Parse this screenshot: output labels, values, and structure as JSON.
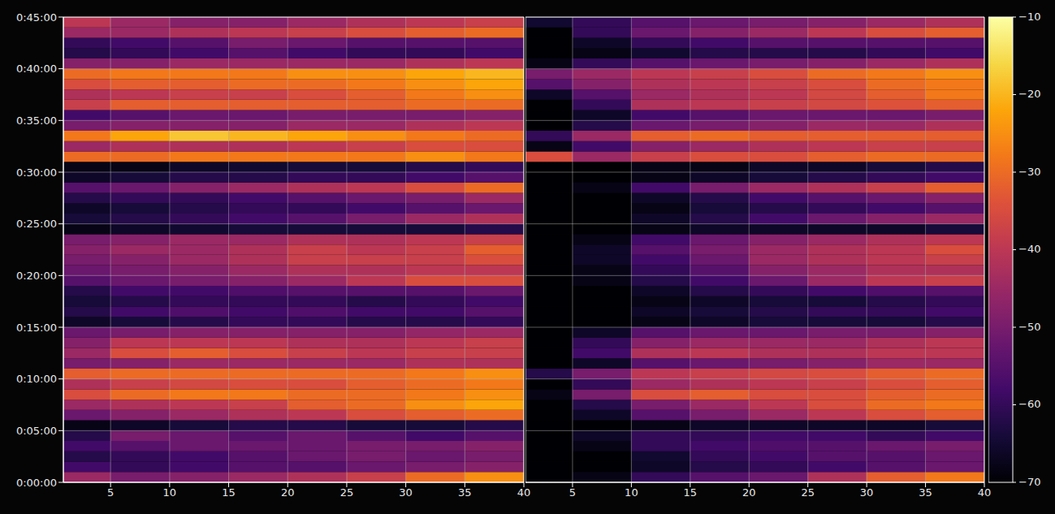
{
  "chart_data": {
    "type": "heatmap",
    "grid": true,
    "colorbar": {
      "range": [
        -70,
        -10
      ],
      "ticks": [
        {
          "value": -70,
          "label": "−70"
        },
        {
          "value": -60,
          "label": "−60"
        },
        {
          "value": -50,
          "label": "−50"
        },
        {
          "value": -40,
          "label": "−40"
        },
        {
          "value": -30,
          "label": "−30"
        },
        {
          "value": -20,
          "label": "−20"
        },
        {
          "value": -10,
          "label": "−10"
        }
      ]
    },
    "panels": [
      {
        "tick_labels": true,
        "xlim": [
          1,
          40
        ],
        "xticks": [
          5,
          10,
          15,
          20,
          25,
          30,
          35,
          40
        ],
        "ylim": [
          0,
          2700
        ],
        "yticks": [
          {
            "value": 0,
            "label": "0:00:00"
          },
          {
            "value": 300,
            "label": "0:05:00"
          },
          {
            "value": 600,
            "label": "0:10:00"
          },
          {
            "value": 900,
            "label": "0:15:00"
          },
          {
            "value": 1200,
            "label": "0:20:00"
          },
          {
            "value": 1500,
            "label": "0:25:00"
          },
          {
            "value": 1800,
            "label": "0:30:00"
          },
          {
            "value": 2100,
            "label": "0:35:00"
          },
          {
            "value": 2400,
            "label": "0:40:00"
          },
          {
            "value": 2700,
            "label": "0:45:00"
          }
        ],
        "x_edges": [
          1,
          5,
          10,
          15,
          20,
          25,
          30,
          35,
          40
        ],
        "y_edges": [
          0,
          60,
          120,
          180,
          240,
          300,
          360,
          420,
          480,
          540,
          600,
          660,
          720,
          780,
          840,
          900,
          960,
          1020,
          1080,
          1140,
          1200,
          1260,
          1320,
          1380,
          1440,
          1500,
          1560,
          1620,
          1680,
          1740,
          1800,
          1860,
          1920,
          1980,
          2040,
          2100,
          2160,
          2220,
          2280,
          2340,
          2400,
          2460,
          2520,
          2580,
          2640,
          2700
        ],
        "values": [
          [
            -45,
            -50,
            -48,
            -45,
            -42,
            -38,
            -30,
            -25
          ],
          [
            -58,
            -60,
            -58,
            -55,
            -55,
            -52,
            -50,
            -48
          ],
          [
            -62,
            -60,
            -58,
            -55,
            -52,
            -50,
            -52,
            -50
          ],
          [
            -58,
            -55,
            -52,
            -52,
            -52,
            -50,
            -50,
            -48
          ],
          [
            -62,
            -50,
            -52,
            -55,
            -52,
            -55,
            -58,
            -55
          ],
          [
            -68,
            -66,
            -64,
            -62,
            -62,
            -64,
            -64,
            -62
          ],
          [
            -52,
            -48,
            -45,
            -42,
            -40,
            -35,
            -32,
            -30
          ],
          [
            -45,
            -42,
            -40,
            -38,
            -32,
            -30,
            -25,
            -22
          ],
          [
            -35,
            -30,
            -28,
            -28,
            -30,
            -30,
            -28,
            -25
          ],
          [
            -42,
            -38,
            -36,
            -35,
            -35,
            -32,
            -30,
            -28
          ],
          [
            -32,
            -30,
            -30,
            -30,
            -30,
            -30,
            -28,
            -25
          ],
          [
            -50,
            -48,
            -45,
            -45,
            -45,
            -45,
            -42,
            -42
          ],
          [
            -45,
            -35,
            -32,
            -35,
            -38,
            -40,
            -38,
            -38
          ],
          [
            -48,
            -40,
            -40,
            -40,
            -42,
            -42,
            -40,
            -38
          ],
          [
            -52,
            -50,
            -48,
            -48,
            -48,
            -48,
            -46,
            -45
          ],
          [
            -66,
            -64,
            -62,
            -60,
            -60,
            -62,
            -62,
            -60
          ],
          [
            -62,
            -58,
            -56,
            -58,
            -56,
            -58,
            -58,
            -55
          ],
          [
            -64,
            -62,
            -60,
            -60,
            -60,
            -62,
            -60,
            -58
          ],
          [
            -62,
            -58,
            -58,
            -56,
            -55,
            -55,
            -55,
            -52
          ],
          [
            -55,
            -52,
            -50,
            -48,
            -45,
            -40,
            -35,
            -35
          ],
          [
            -52,
            -50,
            -48,
            -45,
            -42,
            -42,
            -40,
            -40
          ],
          [
            -50,
            -48,
            -45,
            -42,
            -38,
            -38,
            -38,
            -35
          ],
          [
            -48,
            -45,
            -45,
            -42,
            -38,
            -40,
            -38,
            -32
          ],
          [
            -50,
            -48,
            -45,
            -45,
            -42,
            -42,
            -40,
            -38
          ],
          [
            -68,
            -66,
            -65,
            -64,
            -64,
            -64,
            -64,
            -62
          ],
          [
            -64,
            -62,
            -60,
            -58,
            -55,
            -50,
            -45,
            -42
          ],
          [
            -66,
            -64,
            -62,
            -60,
            -60,
            -58,
            -55,
            -52
          ],
          [
            -62,
            -60,
            -60,
            -58,
            -55,
            -52,
            -50,
            -45
          ],
          [
            -55,
            -52,
            -48,
            -45,
            -42,
            -40,
            -35,
            -30
          ],
          [
            -66,
            -64,
            -62,
            -62,
            -60,
            -60,
            -58,
            -55
          ],
          [
            -68,
            -68,
            -66,
            -65,
            -64,
            -64,
            -62,
            -60
          ],
          [
            -30,
            -30,
            -28,
            -28,
            -28,
            -28,
            -25,
            -28
          ],
          [
            -45,
            -42,
            -42,
            -42,
            -40,
            -38,
            -35,
            -35
          ],
          [
            -28,
            -22,
            -18,
            -20,
            -22,
            -25,
            -28,
            -30
          ],
          [
            -50,
            -48,
            -48,
            -48,
            -45,
            -45,
            -42,
            -40
          ],
          [
            -58,
            -55,
            -52,
            -52,
            -50,
            -50,
            -50,
            -48
          ],
          [
            -38,
            -32,
            -32,
            -32,
            -32,
            -32,
            -30,
            -30
          ],
          [
            -42,
            -40,
            -38,
            -38,
            -35,
            -32,
            -28,
            -25
          ],
          [
            -35,
            -32,
            -32,
            -30,
            -30,
            -28,
            -25,
            -22
          ],
          [
            -30,
            -28,
            -28,
            -28,
            -25,
            -25,
            -22,
            -20
          ],
          [
            -48,
            -48,
            -45,
            -45,
            -45,
            -45,
            -42,
            -40
          ],
          [
            -62,
            -60,
            -58,
            -55,
            -58,
            -60,
            -60,
            -58
          ],
          [
            -60,
            -58,
            -55,
            -50,
            -52,
            -55,
            -55,
            -55
          ],
          [
            -45,
            -45,
            -42,
            -40,
            -38,
            -35,
            -32,
            -30
          ],
          [
            -40,
            -45,
            -48,
            -48,
            -45,
            -42,
            -40,
            -38
          ]
        ]
      },
      {
        "tick_labels": "x",
        "xlim": [
          1,
          40
        ],
        "xticks": [
          5,
          10,
          15,
          20,
          25,
          30,
          35,
          40
        ],
        "ylim": [
          0,
          2700
        ],
        "yticks": [
          {
            "value": 0,
            "label": "0:00:00"
          },
          {
            "value": 300,
            "label": "0:05:00"
          },
          {
            "value": 600,
            "label": "0:10:00"
          },
          {
            "value": 900,
            "label": "0:15:00"
          },
          {
            "value": 1200,
            "label": "0:20:00"
          },
          {
            "value": 1500,
            "label": "0:25:00"
          },
          {
            "value": 1800,
            "label": "0:30:00"
          },
          {
            "value": 2100,
            "label": "0:35:00"
          },
          {
            "value": 2400,
            "label": "0:40:00"
          },
          {
            "value": 2700,
            "label": "0:45:00"
          }
        ],
        "x_edges": [
          1,
          5,
          10,
          15,
          20,
          25,
          30,
          35,
          40
        ],
        "y_edges": [
          0,
          60,
          120,
          180,
          240,
          300,
          360,
          420,
          480,
          540,
          600,
          660,
          720,
          780,
          840,
          900,
          960,
          1020,
          1080,
          1140,
          1200,
          1260,
          1320,
          1380,
          1440,
          1500,
          1560,
          1620,
          1680,
          1740,
          1800,
          1860,
          1920,
          1980,
          2040,
          2100,
          2160,
          2220,
          2280,
          2340,
          2400,
          2460,
          2520,
          2580,
          2640,
          2700
        ],
        "values": [
          [
            -70,
            -68,
            -60,
            -55,
            -52,
            -42,
            -32,
            -28
          ],
          [
            -70,
            -70,
            -66,
            -62,
            -60,
            -58,
            -55,
            -52
          ],
          [
            -70,
            -70,
            -65,
            -60,
            -58,
            -55,
            -55,
            -52
          ],
          [
            -70,
            -68,
            -60,
            -58,
            -56,
            -55,
            -52,
            -50
          ],
          [
            -70,
            -66,
            -60,
            -60,
            -58,
            -58,
            -60,
            -58
          ],
          [
            -70,
            -70,
            -68,
            -66,
            -66,
            -66,
            -66,
            -64
          ],
          [
            -70,
            -66,
            -55,
            -50,
            -45,
            -40,
            -35,
            -32
          ],
          [
            -70,
            -62,
            -50,
            -45,
            -40,
            -35,
            -30,
            -28
          ],
          [
            -68,
            -50,
            -35,
            -32,
            -35,
            -35,
            -32,
            -30
          ],
          [
            -70,
            -60,
            -45,
            -42,
            -40,
            -38,
            -35,
            -32
          ],
          [
            -62,
            -50,
            -40,
            -38,
            -36,
            -35,
            -32,
            -30
          ],
          [
            -70,
            -66,
            -55,
            -52,
            -50,
            -48,
            -45,
            -45
          ],
          [
            -70,
            -58,
            -42,
            -40,
            -42,
            -42,
            -40,
            -40
          ],
          [
            -70,
            -60,
            -48,
            -45,
            -45,
            -45,
            -42,
            -40
          ],
          [
            -70,
            -66,
            -55,
            -52,
            -52,
            -50,
            -50,
            -48
          ],
          [
            -70,
            -70,
            -68,
            -66,
            -64,
            -64,
            -64,
            -62
          ],
          [
            -70,
            -70,
            -66,
            -64,
            -62,
            -60,
            -60,
            -58
          ],
          [
            -70,
            -70,
            -68,
            -66,
            -64,
            -64,
            -62,
            -60
          ],
          [
            -70,
            -70,
            -66,
            -62,
            -60,
            -58,
            -56,
            -55
          ],
          [
            -70,
            -68,
            -62,
            -58,
            -52,
            -45,
            -40,
            -38
          ],
          [
            -70,
            -68,
            -60,
            -55,
            -48,
            -45,
            -42,
            -42
          ],
          [
            -70,
            -66,
            -58,
            -52,
            -45,
            -42,
            -40,
            -38
          ],
          [
            -70,
            -66,
            -55,
            -50,
            -45,
            -42,
            -40,
            -35
          ],
          [
            -70,
            -68,
            -58,
            -52,
            -48,
            -45,
            -42,
            -40
          ],
          [
            -70,
            -70,
            -68,
            -66,
            -66,
            -66,
            -66,
            -64
          ],
          [
            -70,
            -70,
            -66,
            -62,
            -58,
            -52,
            -48,
            -45
          ],
          [
            -70,
            -70,
            -68,
            -64,
            -62,
            -60,
            -58,
            -55
          ],
          [
            -70,
            -70,
            -66,
            -62,
            -58,
            -55,
            -52,
            -48
          ],
          [
            -70,
            -68,
            -58,
            -50,
            -45,
            -42,
            -38,
            -32
          ],
          [
            -70,
            -70,
            -68,
            -66,
            -64,
            -62,
            -60,
            -58
          ],
          [
            -70,
            -70,
            -68,
            -68,
            -66,
            -66,
            -64,
            -62
          ],
          [
            -35,
            -45,
            -38,
            -35,
            -35,
            -32,
            -30,
            -30
          ],
          [
            -68,
            -58,
            -48,
            -45,
            -42,
            -40,
            -38,
            -38
          ],
          [
            -60,
            -45,
            -32,
            -30,
            -32,
            -32,
            -32,
            -32
          ],
          [
            -70,
            -62,
            -52,
            -50,
            -48,
            -45,
            -45,
            -42
          ],
          [
            -70,
            -66,
            -58,
            -55,
            -52,
            -52,
            -52,
            -50
          ],
          [
            -70,
            -60,
            -42,
            -40,
            -38,
            -36,
            -34,
            -32
          ],
          [
            -66,
            -55,
            -45,
            -42,
            -40,
            -36,
            -32,
            -28
          ],
          [
            -55,
            -48,
            -42,
            -40,
            -38,
            -35,
            -30,
            -28
          ],
          [
            -50,
            -45,
            -40,
            -38,
            -35,
            -30,
            -28,
            -25
          ],
          [
            -68,
            -60,
            -55,
            -52,
            -50,
            -48,
            -45,
            -42
          ],
          [
            -70,
            -68,
            -65,
            -62,
            -62,
            -62,
            -60,
            -58
          ],
          [
            -70,
            -66,
            -60,
            -58,
            -55,
            -55,
            -55,
            -55
          ],
          [
            -70,
            -60,
            -52,
            -48,
            -45,
            -40,
            -35,
            -32
          ],
          [
            -65,
            -60,
            -55,
            -52,
            -50,
            -48,
            -45,
            -42
          ]
        ]
      }
    ]
  }
}
